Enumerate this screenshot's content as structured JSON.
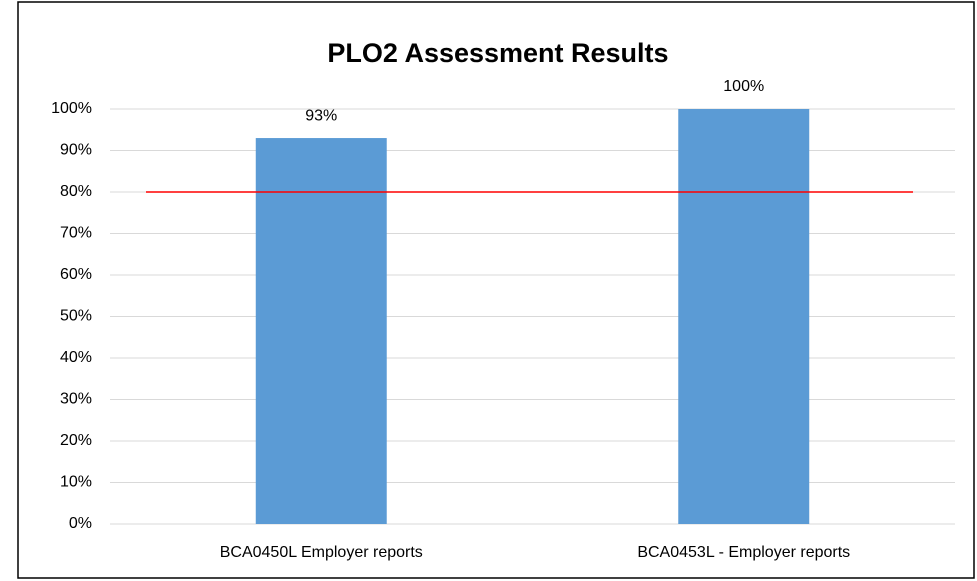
{
  "chart_data": {
    "type": "bar",
    "title": "PLO2 Assessment Results",
    "categories": [
      "BCA0450L Employer reports",
      "BCA0453L - Employer reports"
    ],
    "values": [
      93,
      100
    ],
    "value_labels": [
      "93%",
      "100%"
    ],
    "color": "#5b9bd5",
    "ylim": [
      0,
      100
    ],
    "yticks": [
      {
        "value": 0,
        "label": "0%"
      },
      {
        "value": 10,
        "label": "10%"
      },
      {
        "value": 20,
        "label": "20%"
      },
      {
        "value": 30,
        "label": "30%"
      },
      {
        "value": 40,
        "label": "40%"
      },
      {
        "value": 50,
        "label": "50%"
      },
      {
        "value": 60,
        "label": "60%"
      },
      {
        "value": 70,
        "label": "70%"
      },
      {
        "value": 80,
        "label": "80%"
      },
      {
        "value": 90,
        "label": "90%"
      },
      {
        "value": 100,
        "label": "100%"
      }
    ],
    "grid": true,
    "reference_line": {
      "value": 80,
      "color": "#ff0000"
    }
  }
}
